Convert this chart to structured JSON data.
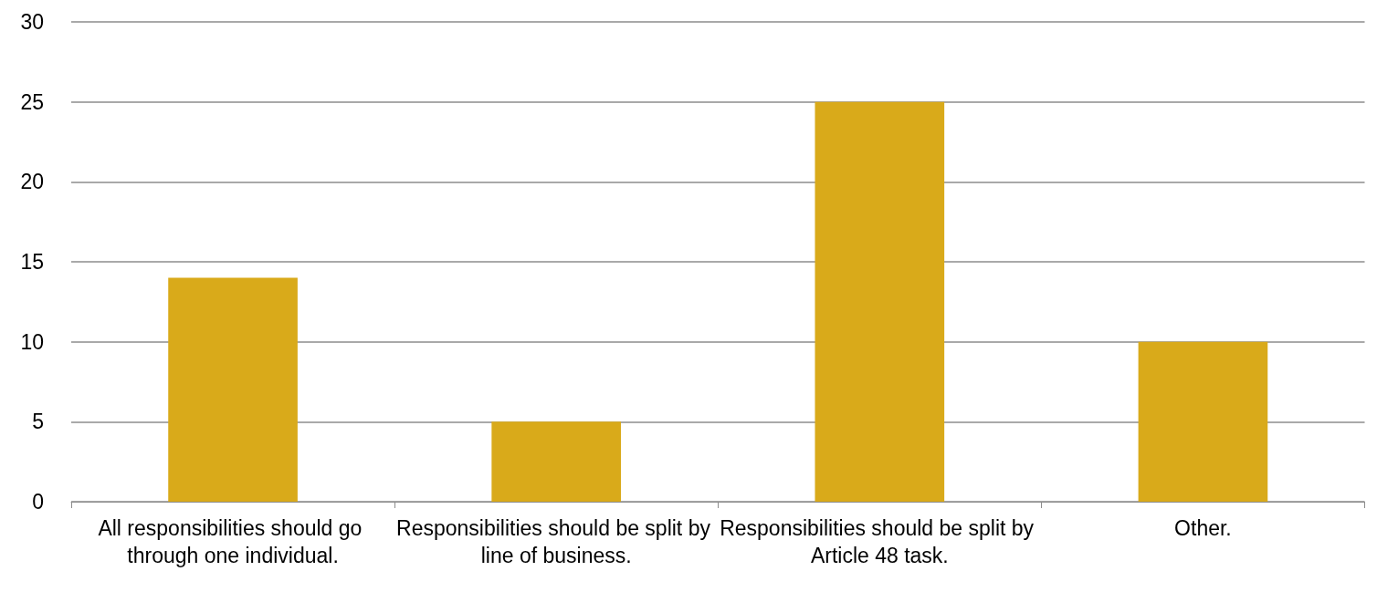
{
  "chart_data": {
    "type": "bar",
    "categories": [
      "All responsibilities should go through one individual.",
      "Responsibilities should be split by line of business.",
      "Responsibilities should be split by Article 48 task.",
      "Other."
    ],
    "values": [
      14,
      5,
      25,
      10
    ],
    "color": "#d9aa1a",
    "ylim": [
      0,
      30
    ],
    "yticks": [
      0,
      5,
      10,
      15,
      20,
      25,
      30
    ],
    "grid": "y"
  }
}
